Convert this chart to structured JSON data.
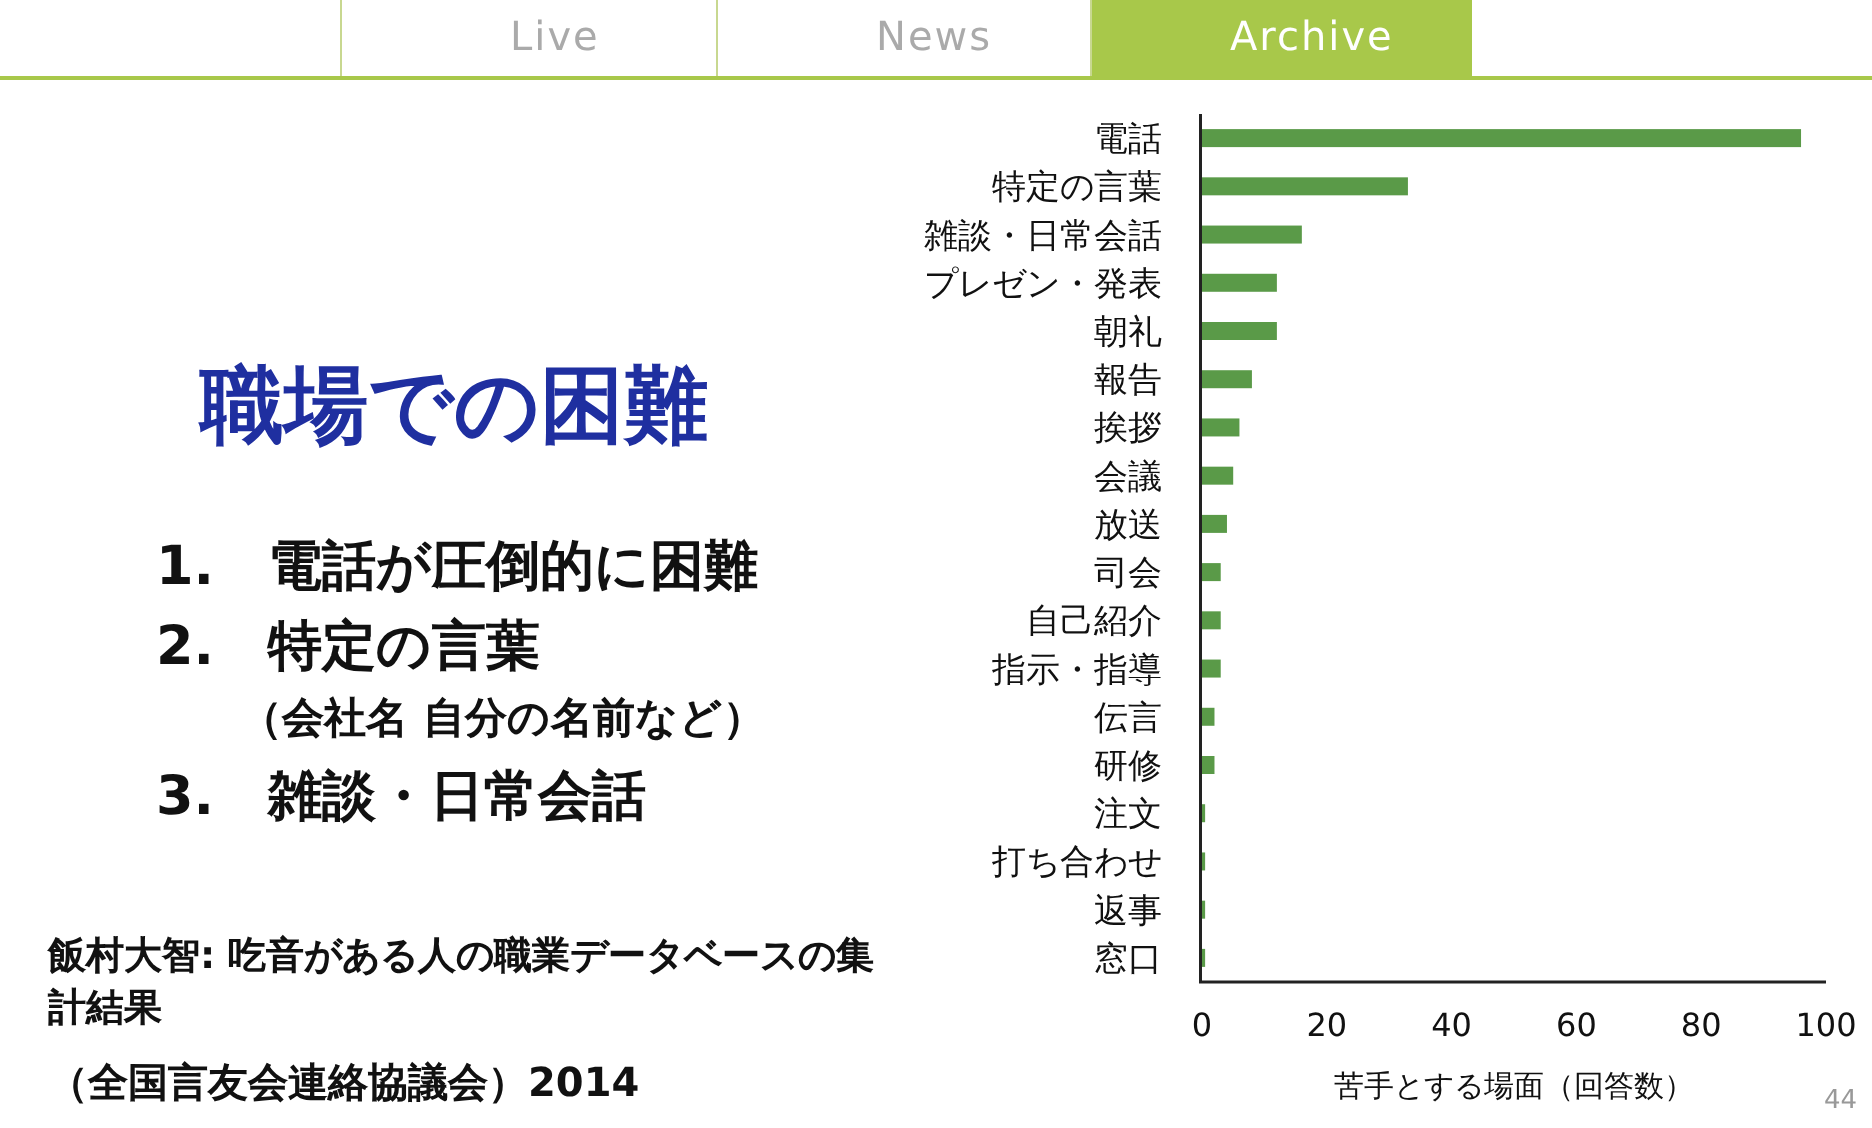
{
  "chart_data": {
    "type": "bar",
    "orientation": "horizontal",
    "title": "職場での困難",
    "xlabel": "苦手とする場面（回答数）",
    "categories": [
      "電話",
      "特定の言葉",
      "雑談・日常会話",
      "プレゼン・発表",
      "朝礼",
      "報告",
      "挨拶",
      "会議",
      "放送",
      "司会",
      "自己紹介",
      "指示・指導",
      "伝言",
      "研修",
      "注文",
      "打ち合わせ",
      "返事",
      "窓口"
    ],
    "values": [
      96,
      33,
      16,
      12,
      12,
      8,
      6,
      5,
      4,
      3,
      3,
      3,
      2,
      2,
      0.5,
      0.5,
      0.5,
      0.5
    ],
    "color": "#5a9a48",
    "xlim": [
      0,
      100
    ],
    "xticks": [
      0,
      20,
      40,
      60,
      80,
      100
    ],
    "grid": false,
    "annotations": [
      "Live",
      "News",
      "Archive",
      "1.　電話が圧倒的に困難",
      "2.　特定の言葉",
      "（会社名 自分の名前など）",
      "3.　雑談・日常会話",
      "飯村大智: 吃音がある人の職業データベースの集計結果",
      "（全国言友会連絡協議会）2014",
      "44"
    ]
  }
}
